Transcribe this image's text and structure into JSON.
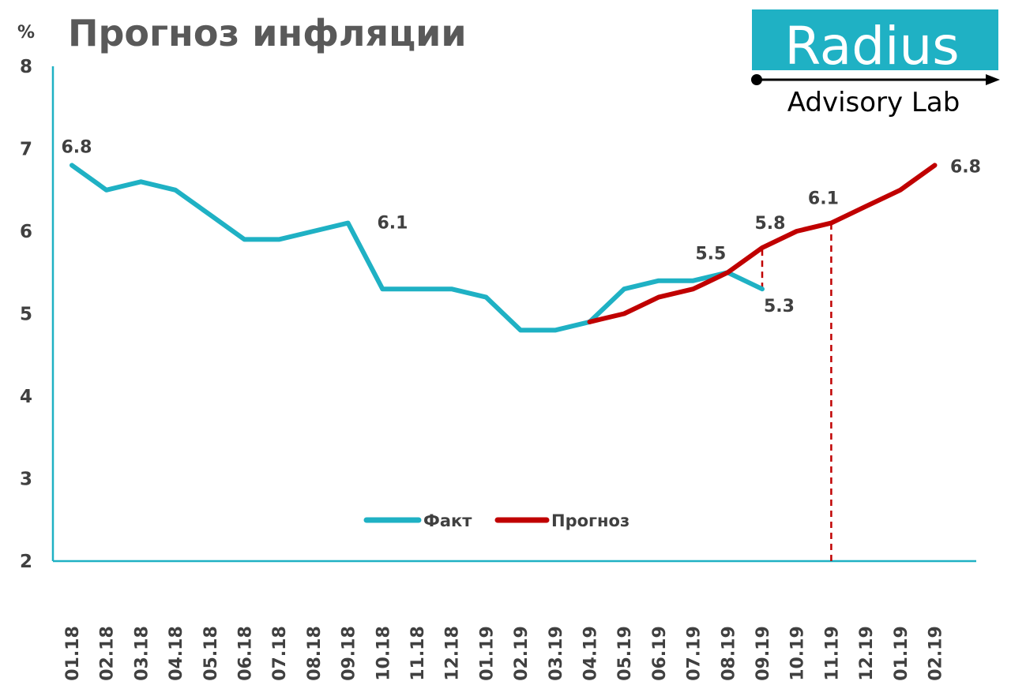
{
  "title": "Прогноз инфляции",
  "unit_label": "%",
  "logo": {
    "word": "Radius",
    "subtitle": "Advisory Lab",
    "box_color": "#1fb1c4"
  },
  "colors": {
    "fact": "#1fb1c4",
    "forecast": "#c00000",
    "axis": "#1fb1c4",
    "text": "#404040"
  },
  "chart_data": {
    "type": "line",
    "title": "Прогноз инфляции",
    "ylabel": "%",
    "xlabel": "",
    "ylim": [
      2,
      8
    ],
    "y_ticks": [
      "2",
      "3",
      "4",
      "5",
      "6",
      "7",
      "8"
    ],
    "categories": [
      "01.18",
      "02.18",
      "03.18",
      "04.18",
      "05.18",
      "06.18",
      "07.18",
      "08.18",
      "09.18",
      "10.18",
      "11.18",
      "12.18",
      "01.19",
      "02.19",
      "03.19",
      "04.19",
      "05.19",
      "06.19",
      "07.19",
      "08.19",
      "09.19",
      "10.19",
      "11.19",
      "12.19",
      "01.19",
      "02.19"
    ],
    "series": [
      {
        "name": "Факт",
        "values": [
          6.8,
          6.5,
          6.6,
          6.5,
          6.2,
          5.9,
          5.9,
          6.0,
          6.1,
          5.3,
          5.3,
          5.3,
          5.2,
          4.8,
          4.8,
          4.9,
          5.3,
          5.4,
          5.4,
          5.5,
          5.3,
          null,
          null,
          null,
          null,
          null
        ]
      },
      {
        "name": "Прогноз",
        "values": [
          null,
          null,
          null,
          null,
          null,
          null,
          null,
          null,
          null,
          null,
          null,
          null,
          null,
          null,
          null,
          4.9,
          5.0,
          5.2,
          5.3,
          5.5,
          5.8,
          6.0,
          6.1,
          6.3,
          6.5,
          6.8
        ]
      }
    ],
    "data_labels": [
      {
        "series": 0,
        "index": 0,
        "text": "6.8"
      },
      {
        "series": 0,
        "index": 8,
        "text": "6.1"
      },
      {
        "series": 0,
        "index": 20,
        "text": "5.3"
      },
      {
        "series": 1,
        "index": 19,
        "text": "5.5"
      },
      {
        "series": 1,
        "index": 20,
        "text": "5.8"
      },
      {
        "series": 1,
        "index": 22,
        "text": "6.1"
      },
      {
        "series": 1,
        "index": 25,
        "text": "6.8"
      }
    ],
    "vertical_markers": [
      {
        "index": 20,
        "from": 5.3,
        "to": 5.8,
        "style": "dashed"
      },
      {
        "index": 22,
        "from": 2,
        "to": 6.1,
        "style": "dashed"
      }
    ],
    "legend": {
      "placement": "bottom-center",
      "entries": [
        "Факт",
        "Прогноз"
      ]
    },
    "grid": false
  }
}
